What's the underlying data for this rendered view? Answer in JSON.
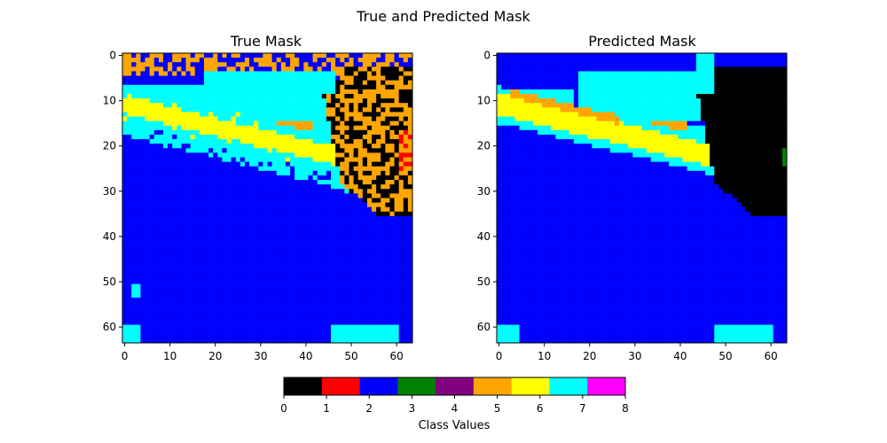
{
  "figure": {
    "title": "True and Predicted Mask"
  },
  "palette": [
    "#000000",
    "#ff0000",
    "#0000ff",
    "#008000",
    "#800080",
    "#ffa500",
    "#ffff00",
    "#00ffff",
    "#ff00ff"
  ],
  "chart_data": [
    {
      "type": "heatmap",
      "title": "True Mask",
      "grid": false,
      "xlim": [
        -0.5,
        63.5
      ],
      "ylim": [
        63.5,
        -0.5
      ],
      "xticks": [
        0,
        10,
        20,
        30,
        40,
        50,
        60
      ],
      "yticks": [
        0,
        10,
        20,
        30,
        40,
        50,
        60
      ],
      "rows": 64,
      "cols": 64
    },
    {
      "type": "heatmap",
      "title": "Predicted Mask",
      "grid": false,
      "xlim": [
        -0.5,
        63.5
      ],
      "ylim": [
        63.5,
        -0.5
      ],
      "xticks": [
        0,
        10,
        20,
        30,
        40,
        50,
        60
      ],
      "yticks": [
        0,
        10,
        20,
        30,
        40,
        50,
        60
      ],
      "rows": 64,
      "cols": 64
    }
  ],
  "colorbar": {
    "label": "Class Values",
    "ticks": [
      "0",
      "1",
      "2",
      "3",
      "4",
      "5",
      "6",
      "7",
      "8"
    ],
    "range": [
      0,
      8
    ],
    "n_colors": 9
  }
}
